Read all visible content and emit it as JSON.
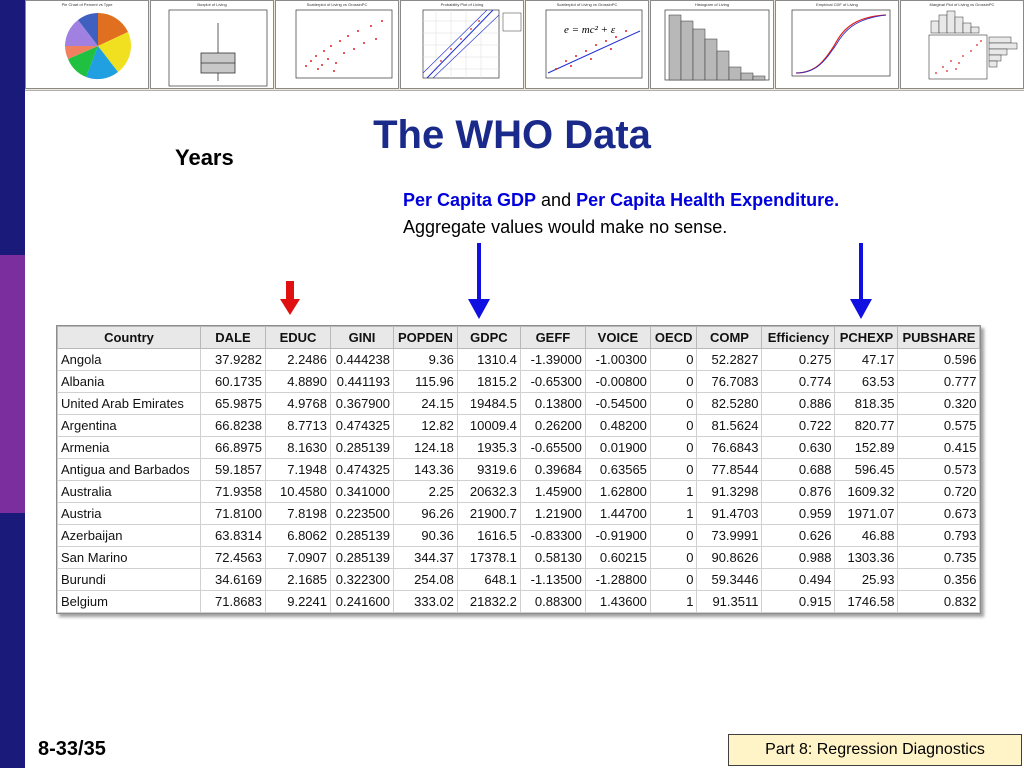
{
  "colors": {
    "sidebar_top": "#1a1a7a",
    "sidebar_mid": "#7b2f9e",
    "sidebar_bottom": "#1a1a7a",
    "title": "#1a2a8a",
    "highlight": "#0000dd",
    "arrow_red": "#e01010",
    "arrow_blue": "#1010e0",
    "footer_bg": "#fff4c8"
  },
  "thumbnails": [
    {
      "title": "Pie Chart of Percent vs Type"
    },
    {
      "title": "Boxplot of Living"
    },
    {
      "title": "Scatterplot of Living vs GrossinPC"
    },
    {
      "title": "Probability Plot of Living"
    },
    {
      "title": "Scatterplot of Living vs GrossinPC"
    },
    {
      "title": "Histogram of Living"
    },
    {
      "title": "Empirical CDF of Living"
    },
    {
      "title": "Marginal Plot of Living vs GrossinPC"
    }
  ],
  "slide": {
    "title": "The WHO Data",
    "years_label": "Years",
    "note_bold1": "Per Capita GDP",
    "note_and": " and ",
    "note_bold2": "Per Capita Health Expenditure",
    "note_period": ".",
    "note_line2": "Aggregate values would make no sense.",
    "page_number": "8-33/35",
    "footer": "Part 8: Regression Diagnostics"
  },
  "table": {
    "columns": [
      "Country",
      "DALE",
      "EDUC",
      "GINI",
      "POPDEN",
      "GDPC",
      "GEFF",
      "VOICE",
      "OECD",
      "COMP",
      "Efficiency",
      "PCHEXP",
      "PUBSHARE"
    ],
    "rows": [
      [
        "Angola",
        "37.9282",
        "2.2486",
        "0.444238",
        "9.36",
        "1310.4",
        "-1.39000",
        "-1.00300",
        "0",
        "52.2827",
        "0.275",
        "47.17",
        "0.596"
      ],
      [
        "Albania",
        "60.1735",
        "4.8890",
        "0.441193",
        "115.96",
        "1815.2",
        "-0.65300",
        "-0.00800",
        "0",
        "76.7083",
        "0.774",
        "63.53",
        "0.777"
      ],
      [
        "United Arab Emirates",
        "65.9875",
        "4.9768",
        "0.367900",
        "24.15",
        "19484.5",
        "0.13800",
        "-0.54500",
        "0",
        "82.5280",
        "0.886",
        "818.35",
        "0.320"
      ],
      [
        "Argentina",
        "66.8238",
        "8.7713",
        "0.474325",
        "12.82",
        "10009.4",
        "0.26200",
        "0.48200",
        "0",
        "81.5624",
        "0.722",
        "820.77",
        "0.575"
      ],
      [
        "Armenia",
        "66.8975",
        "8.1630",
        "0.285139",
        "124.18",
        "1935.3",
        "-0.65500",
        "0.01900",
        "0",
        "76.6843",
        "0.630",
        "152.89",
        "0.415"
      ],
      [
        "Antigua and Barbados",
        "59.1857",
        "7.1948",
        "0.474325",
        "143.36",
        "9319.6",
        "0.39684",
        "0.63565",
        "0",
        "77.8544",
        "0.688",
        "596.45",
        "0.573"
      ],
      [
        "Australia",
        "71.9358",
        "10.4580",
        "0.341000",
        "2.25",
        "20632.3",
        "1.45900",
        "1.62800",
        "1",
        "91.3298",
        "0.876",
        "1609.32",
        "0.720"
      ],
      [
        "Austria",
        "71.8100",
        "7.8198",
        "0.223500",
        "96.26",
        "21900.7",
        "1.21900",
        "1.44700",
        "1",
        "91.4703",
        "0.959",
        "1971.07",
        "0.673"
      ],
      [
        "Azerbaijan",
        "63.8314",
        "6.8062",
        "0.285139",
        "90.36",
        "1616.5",
        "-0.83300",
        "-0.91900",
        "0",
        "73.9991",
        "0.626",
        "46.88",
        "0.793"
      ],
      [
        "San Marino",
        "72.4563",
        "7.0907",
        "0.285139",
        "344.37",
        "17378.1",
        "0.58130",
        "0.60215",
        "0",
        "90.8626",
        "0.988",
        "1303.36",
        "0.735"
      ],
      [
        "Burundi",
        "34.6169",
        "2.1685",
        "0.322300",
        "254.08",
        "648.1",
        "-1.13500",
        "-1.28800",
        "0",
        "59.3446",
        "0.494",
        "25.93",
        "0.356"
      ],
      [
        "Belgium",
        "71.8683",
        "9.2241",
        "0.241600",
        "333.02",
        "21832.2",
        "0.88300",
        "1.43600",
        "1",
        "91.3511",
        "0.915",
        "1746.58",
        "0.832"
      ]
    ]
  }
}
